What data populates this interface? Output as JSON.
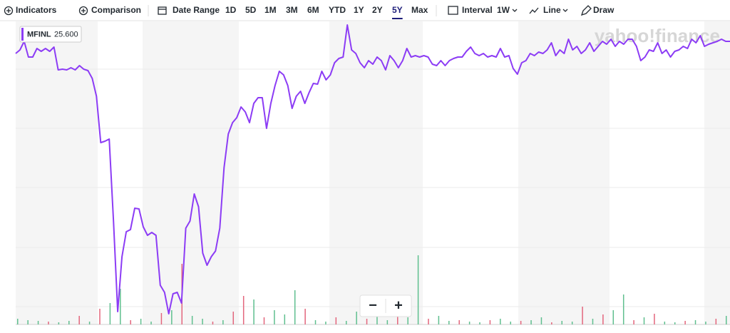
{
  "toolbar": {
    "indicators": "Indicators",
    "comparison": "Comparison",
    "date_range": "Date Range",
    "ranges": [
      "1D",
      "5D",
      "1M",
      "3M",
      "6M",
      "YTD",
      "1Y",
      "2Y",
      "5Y",
      "Max"
    ],
    "selected_range": 8,
    "interval_label": "Interval",
    "interval": "1W",
    "chart_style": "Line",
    "draw": "Draw"
  },
  "watermark": "yahoo!finance",
  "zoom_out": "−",
  "zoom_in": "+",
  "chart_data": {
    "type": "line",
    "ylim": [
      17.66,
      26.16
    ],
    "price_label": "25.600",
    "series": [
      {
        "name": "MFINL",
        "color": "#8c3cf5",
        "values": [
          25.26,
          25.36,
          25.6,
          25.16,
          25.16,
          25.4,
          25.32,
          25.4,
          25.32,
          25.44,
          24.8,
          24.82,
          24.8,
          24.86,
          24.8,
          24.92,
          24.82,
          24.78,
          24.56,
          24.06,
          22.76,
          22.8,
          22.86,
          20.56,
          18.02,
          19.56,
          20.26,
          20.32,
          20.92,
          20.9,
          20.4,
          20.16,
          20.24,
          20.16,
          18.76,
          18.56,
          17.96,
          18.52,
          18.56,
          18.26,
          20.36,
          20.56,
          21.32,
          20.96,
          19.66,
          19.32,
          19.56,
          19.72,
          20.36,
          22.06,
          23.0,
          23.32,
          23.46,
          23.76,
          23.62,
          23.32,
          23.86,
          24.02,
          24.02,
          23.16,
          23.86,
          24.36,
          24.76,
          24.66,
          24.36,
          23.72,
          24.06,
          24.2,
          23.86,
          24.16,
          24.42,
          24.4,
          24.76,
          24.52,
          24.66,
          25.0,
          25.12,
          25.16,
          26.06,
          25.36,
          25.26,
          25.0,
          24.86,
          25.06,
          24.96,
          25.16,
          25.06,
          24.8,
          25.2,
          25.06,
          24.86,
          25.06,
          25.4,
          25.16,
          25.2,
          25.16,
          25.2,
          25.16,
          24.96,
          24.92,
          25.06,
          24.92,
          25.06,
          25.12,
          25.16,
          25.16,
          25.32,
          25.44,
          25.26,
          25.2,
          25.26,
          25.16,
          25.2,
          25.16,
          25.4,
          25.16,
          25.2,
          24.84,
          24.68,
          25.0,
          25.06,
          25.26,
          25.2,
          25.3,
          25.26,
          25.36,
          25.56,
          25.2,
          25.36,
          25.26,
          25.66,
          25.36,
          25.46,
          25.26,
          25.36,
          25.56,
          25.32,
          25.46,
          25.6,
          25.52,
          25.66,
          25.46,
          25.6,
          25.52,
          25.66,
          25.66,
          25.46,
          25.06,
          25.16,
          25.36,
          25.32,
          25.56,
          25.26,
          25.36,
          25.16,
          25.32,
          25.36,
          25.46,
          25.4,
          25.66,
          25.56,
          25.76,
          25.46,
          25.52,
          25.56,
          25.6,
          25.66,
          25.6,
          25.6
        ]
      }
    ],
    "volume": {
      "y2lim": [
        0,
        100
      ],
      "up_color": "#5fbf8f",
      "down_color": "#e3667d",
      "values": [
        8,
        6,
        5,
        4,
        3,
        5,
        12,
        4,
        22,
        30,
        50,
        6,
        8,
        4,
        16,
        20,
        85,
        12,
        8,
        4,
        6,
        18,
        40,
        35,
        10,
        20,
        14,
        48,
        22,
        6,
        4,
        10,
        5,
        18,
        8,
        12,
        6,
        14,
        10,
        97,
        8,
        12,
        5,
        6,
        4,
        3,
        6,
        8,
        4,
        5,
        6,
        10,
        3,
        5,
        4,
        25,
        8,
        14,
        20,
        42,
        6,
        10,
        15,
        4,
        3,
        5,
        6,
        4,
        8,
        12
      ],
      "up": [
        true,
        true,
        true,
        false,
        true,
        true,
        false,
        true,
        false,
        true,
        true,
        false,
        true,
        true,
        false,
        true,
        false,
        true,
        true,
        false,
        true,
        false,
        false,
        true,
        false,
        true,
        true,
        true,
        false,
        true,
        true,
        false,
        true,
        true,
        false,
        true,
        true,
        false,
        true,
        true,
        false,
        true,
        true,
        false,
        true,
        true,
        false,
        true,
        true,
        false,
        true,
        true,
        false,
        true,
        true,
        false,
        true,
        false,
        true,
        true,
        false,
        true,
        false,
        true,
        true,
        false,
        true,
        true,
        false,
        true
      ]
    }
  }
}
